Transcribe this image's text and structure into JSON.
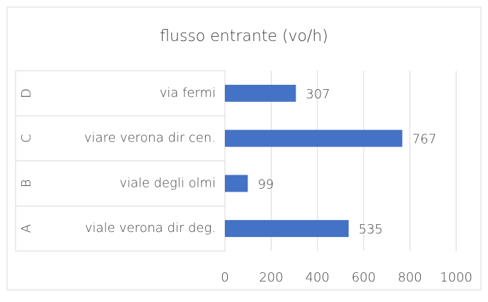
{
  "chart_data": {
    "type": "bar",
    "orientation": "horizontal",
    "title": "flusso entrante (vo/h)",
    "groups": [
      "A",
      "B",
      "C",
      "D"
    ],
    "categories": [
      "viale verona dir deg.",
      "viale degli olmi",
      "viare verona dir cen.",
      "via fermi"
    ],
    "values": [
      535,
      99,
      767,
      307
    ],
    "color": "#4472c4",
    "xlim": [
      0,
      1000
    ],
    "xticks": [
      0,
      200,
      400,
      600,
      800,
      1000
    ],
    "grid": true
  }
}
